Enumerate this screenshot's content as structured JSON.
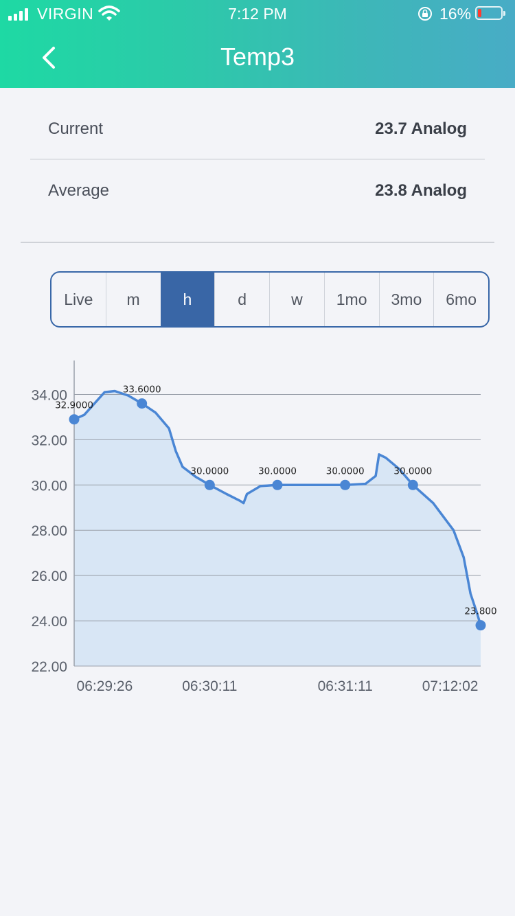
{
  "status_bar": {
    "carrier": "VIRGIN",
    "time": "7:12 PM",
    "battery_percent": "16%",
    "battery_level": 0.16
  },
  "header": {
    "title": "Temp3",
    "back_icon": "chevron-left-icon"
  },
  "stats": {
    "current_label": "Current",
    "current_value": "23.7 Analog",
    "average_label": "Average",
    "average_value": "23.8 Analog"
  },
  "range_tabs": {
    "items": [
      "Live",
      "m",
      "h",
      "d",
      "w",
      "1mo",
      "3mo",
      "6mo"
    ],
    "selected": "h"
  },
  "colors": {
    "accent": "#3966a6",
    "line": "#4a86d4",
    "fill": "#d8e6f5",
    "header_start": "#1ed9a4",
    "header_end": "#48acc6"
  },
  "chart_data": {
    "type": "area",
    "y_tick_labels": [
      "22.00",
      "24.00",
      "26.00",
      "28.00",
      "30.00",
      "32.00",
      "34.00"
    ],
    "y_ticks": [
      22,
      24,
      26,
      28,
      30,
      32,
      34
    ],
    "ylim": [
      22,
      35.5
    ],
    "grid": true,
    "x_tick_labels": [
      {
        "label": "06:29:26",
        "index": 0.45
      },
      {
        "label": "06:30:11",
        "index": 2.0
      },
      {
        "label": "06:31:11",
        "index": 4.0
      },
      {
        "label": "07:12:02",
        "index": 5.55
      }
    ],
    "points": [
      {
        "index": 0,
        "value": 32.9,
        "label": "32.9000"
      },
      {
        "index": 1,
        "value": 33.6,
        "label": "33.6000"
      },
      {
        "index": 2,
        "value": 30.0,
        "label": "30.0000"
      },
      {
        "index": 3,
        "value": 30.0,
        "label": "30.0000"
      },
      {
        "index": 4,
        "value": 30.0,
        "label": "30.0000"
      },
      {
        "index": 5,
        "value": 30.0,
        "label": "30.0000"
      },
      {
        "index": 6,
        "value": 23.8,
        "label": "23.800"
      }
    ],
    "curve_path": [
      [
        0,
        32.9
      ],
      [
        0.15,
        33.1
      ],
      [
        0.3,
        33.6
      ],
      [
        0.45,
        34.1
      ],
      [
        0.6,
        34.15
      ],
      [
        0.8,
        33.95
      ],
      [
        1.0,
        33.6
      ],
      [
        1.2,
        33.2
      ],
      [
        1.4,
        32.5
      ],
      [
        1.5,
        31.5
      ],
      [
        1.6,
        30.8
      ],
      [
        1.8,
        30.35
      ],
      [
        2.0,
        30.0
      ],
      [
        2.25,
        29.6
      ],
      [
        2.45,
        29.3
      ],
      [
        2.5,
        29.2
      ],
      [
        2.55,
        29.6
      ],
      [
        2.75,
        29.95
      ],
      [
        3.0,
        30.0
      ],
      [
        3.5,
        30.0
      ],
      [
        4.0,
        30.0
      ],
      [
        4.3,
        30.05
      ],
      [
        4.45,
        30.4
      ],
      [
        4.5,
        31.35
      ],
      [
        4.6,
        31.2
      ],
      [
        4.8,
        30.7
      ],
      [
        5.0,
        30.0
      ],
      [
        5.3,
        29.2
      ],
      [
        5.6,
        28.0
      ],
      [
        5.75,
        26.8
      ],
      [
        5.85,
        25.2
      ],
      [
        5.95,
        24.3
      ],
      [
        6.0,
        23.8
      ]
    ]
  }
}
